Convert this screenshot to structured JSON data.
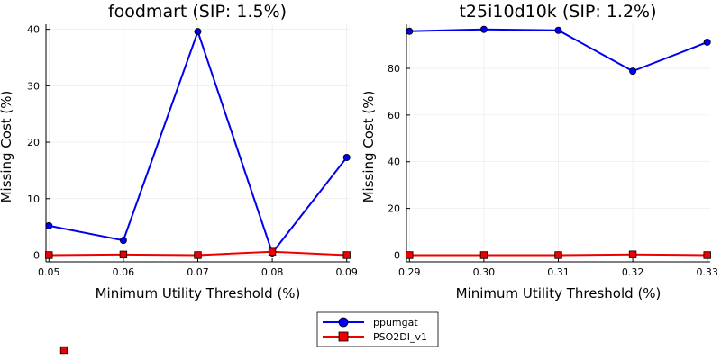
{
  "chart_data": [
    {
      "type": "line",
      "title": "foodmart (SIP: 1.5%)",
      "xlabel": "Minimum Utility Threshold (%)",
      "ylabel": "Missing Cost (%)",
      "x": [
        0.05,
        0.06,
        0.07,
        0.08,
        0.09
      ],
      "x_tick_labels": [
        "0.05",
        "0.06",
        "0.07",
        "0.08",
        "0.09"
      ],
      "xlim": [
        0.0496,
        0.0904
      ],
      "ylim": [
        -1.2,
        40.9
      ],
      "y_ticks": [
        0,
        10,
        20,
        30,
        40
      ],
      "grid": true,
      "series": [
        {
          "name": "ppumgat",
          "color": "#0000ee",
          "marker": "circle",
          "values": [
            5.2,
            2.6,
            39.6,
            0.4,
            17.3
          ]
        },
        {
          "name": "PSO2DI_v1",
          "color": "#ee0000",
          "marker": "square",
          "values": [
            0.0,
            0.1,
            0.0,
            0.6,
            0.0
          ]
        }
      ]
    },
    {
      "type": "line",
      "title": "t25i10d10k (SIP: 1.2%)",
      "xlabel": "Minimum Utility Threshold (%)",
      "ylabel": "Missing Cost (%)",
      "x": [
        0.29,
        0.3,
        0.31,
        0.32,
        0.33
      ],
      "x_tick_labels": [
        "0.29",
        "0.30",
        "0.31",
        "0.32",
        "0.33"
      ],
      "xlim": [
        0.2896,
        0.3304
      ],
      "ylim": [
        -2.9,
        98.9
      ],
      "y_ticks": [
        0,
        20,
        40,
        60,
        80
      ],
      "grid": true,
      "series": [
        {
          "name": "ppumgat",
          "color": "#0000ee",
          "marker": "circle",
          "values": [
            95.9,
            96.7,
            96.3,
            78.8,
            91.2
          ]
        },
        {
          "name": "PSO2DI_v1",
          "color": "#ee0000",
          "marker": "square",
          "values": [
            0.0,
            0.0,
            0.0,
            0.3,
            0.0
          ]
        }
      ]
    }
  ],
  "legend": {
    "placement": "bottom-center",
    "entries": [
      {
        "name": "ppumgat",
        "color": "#0000ee",
        "marker": "circle"
      },
      {
        "name": "PSO2DI_v1",
        "color": "#ee0000",
        "marker": "square"
      }
    ]
  },
  "stray_marker": {
    "color": "#ee0000",
    "marker": "square"
  }
}
